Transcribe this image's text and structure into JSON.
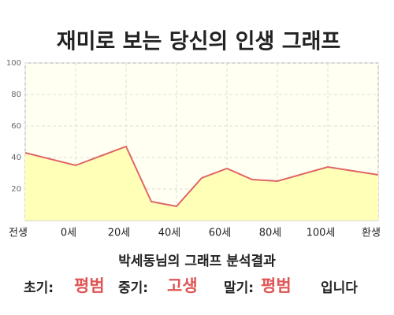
{
  "chart_data": {
    "type": "area",
    "title": "재미로 보는 당신의 인생 그래프",
    "x": [
      -20,
      0,
      20,
      30,
      40,
      50,
      60,
      70,
      80,
      100,
      120
    ],
    "values": [
      43,
      35,
      47,
      12,
      9,
      27,
      33,
      26,
      25,
      34,
      29
    ],
    "color": "#e06666",
    "fill": "#ffffb8",
    "xlim": [
      -20,
      120
    ],
    "xticks": [
      {
        "value": -20,
        "label": "전생"
      },
      {
        "value": 0,
        "label": "0세"
      },
      {
        "value": 20,
        "label": "20세"
      },
      {
        "value": 40,
        "label": "40세"
      },
      {
        "value": 60,
        "label": "60세"
      },
      {
        "value": 80,
        "label": "80세"
      },
      {
        "value": 100,
        "label": "100세"
      },
      {
        "value": 120,
        "label": "환생"
      }
    ],
    "ylim": [
      0,
      100
    ],
    "yticks": [
      20,
      40,
      60,
      80,
      100
    ],
    "grid": true
  },
  "result": {
    "heading": "박세동님의 그래프 분석결과",
    "early_label": "초기:",
    "early": "평범",
    "middle_label": "중기:",
    "middle": "고생",
    "late_label": "말기:",
    "late": "평범",
    "ending": "입니다"
  }
}
